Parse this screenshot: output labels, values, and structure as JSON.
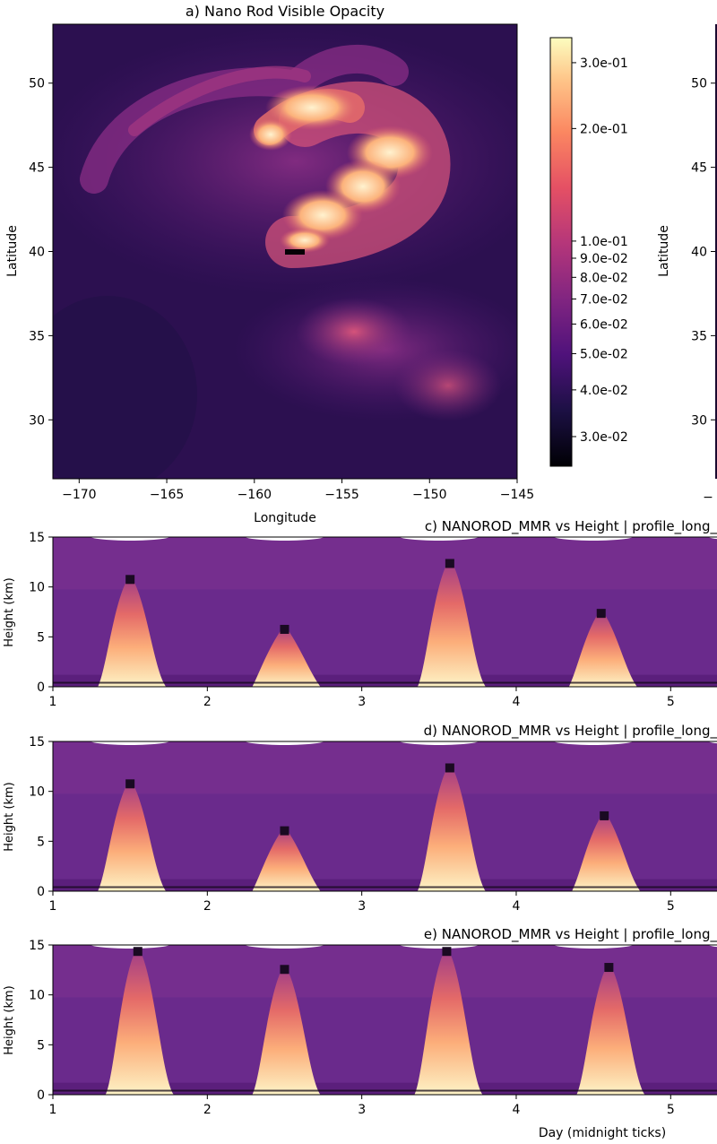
{
  "chart_data": [
    {
      "id": "a",
      "type": "heatmap",
      "title": "a) Nano Rod Visible Opacity",
      "xlabel": "Longitude",
      "ylabel": "Latitude",
      "xlim": [
        -171.5,
        -145
      ],
      "ylim": [
        26.5,
        53.5
      ],
      "xticks": [
        -170,
        -165,
        -160,
        -155,
        -150,
        -145
      ],
      "xtick_labels": [
        "−170",
        "−165",
        "−160",
        "−155",
        "−150",
        "−145"
      ],
      "yticks": [
        30,
        35,
        40,
        45,
        50
      ],
      "ytick_labels": [
        "30",
        "35",
        "40",
        "45",
        "50"
      ],
      "colormap": "magma",
      "colorbar": {
        "scale": "log",
        "range": [
          0.025,
          0.35
        ],
        "ticks": [
          0.3,
          0.2,
          0.1,
          0.09,
          0.08,
          0.07,
          0.06,
          0.05,
          0.04,
          0.03
        ],
        "tick_labels": [
          "3.0e-01",
          "2.0e-01",
          "1.0e-01",
          "9.0e-02",
          "8.0e-02",
          "7.0e-02",
          "6.0e-02",
          "5.0e-02",
          "4.0e-02",
          "3.0e-02"
        ]
      },
      "plume_features": [
        {
          "lon": -156.5,
          "lat": 47.8,
          "value": 0.32
        },
        {
          "lon": -153.0,
          "lat": 46.5,
          "value": 0.28
        },
        {
          "lon": -152.0,
          "lat": 44.0,
          "value": 0.3
        },
        {
          "lon": -154.5,
          "lat": 42.0,
          "value": 0.28
        },
        {
          "lon": -156.5,
          "lat": 40.6,
          "value": 0.33
        },
        {
          "lon": -154.0,
          "lat": 35.0,
          "value": 0.075
        }
      ]
    },
    {
      "id": "b",
      "type": "heatmap",
      "partial": true,
      "ylabel": "Latitude",
      "yticks": [
        30,
        35,
        40,
        45,
        50
      ],
      "ytick_labels": [
        "30",
        "35",
        "40",
        "45",
        "50"
      ]
    },
    {
      "id": "c",
      "type": "heatmap",
      "title": "c) NANOROD_MMR vs Height | profile_long_",
      "xlabel": "",
      "ylabel": "Height (km)",
      "xlim": [
        1,
        5.3
      ],
      "ylim": [
        0,
        15
      ],
      "xticks": [
        1,
        2,
        3,
        4,
        5
      ],
      "xtick_labels": [
        "1",
        "2",
        "3",
        "4",
        "5"
      ],
      "yticks": [
        0,
        5,
        10,
        15
      ],
      "ytick_labels": [
        "0",
        "5",
        "10",
        "15"
      ],
      "colormap": "magma",
      "plumes": [
        {
          "day": 1.5,
          "top_km": 11.2
        },
        {
          "day": 2.5,
          "top_km": 6.2
        },
        {
          "day": 3.57,
          "top_km": 12.8
        },
        {
          "day": 4.55,
          "top_km": 7.8
        }
      ]
    },
    {
      "id": "d",
      "type": "heatmap",
      "title": "d) NANOROD_MMR vs Height | profile_long_",
      "xlabel": "",
      "ylabel": "Height (km)",
      "xlim": [
        1,
        5.3
      ],
      "ylim": [
        0,
        15
      ],
      "xticks": [
        1,
        2,
        3,
        4,
        5
      ],
      "xtick_labels": [
        "1",
        "2",
        "3",
        "4",
        "5"
      ],
      "yticks": [
        0,
        5,
        10,
        15
      ],
      "ytick_labels": [
        "0",
        "5",
        "10",
        "15"
      ],
      "colormap": "magma",
      "plumes": [
        {
          "day": 1.5,
          "top_km": 11.2
        },
        {
          "day": 2.5,
          "top_km": 6.5
        },
        {
          "day": 3.57,
          "top_km": 12.8
        },
        {
          "day": 4.57,
          "top_km": 8.0
        }
      ]
    },
    {
      "id": "e",
      "type": "heatmap",
      "title": "e) NANOROD_MMR vs Height | profile_long_",
      "xlabel": "Day (midnight ticks)",
      "ylabel": "Height (km)",
      "xlim": [
        1,
        5.3
      ],
      "ylim": [
        0,
        15
      ],
      "xticks": [
        1,
        2,
        3,
        4,
        5
      ],
      "xtick_labels": [
        "1",
        "2",
        "3",
        "4",
        "5"
      ],
      "yticks": [
        0,
        5,
        10,
        15
      ],
      "ytick_labels": [
        "0",
        "5",
        "10",
        "15"
      ],
      "colormap": "magma",
      "plumes": [
        {
          "day": 1.55,
          "top_km": 14.8
        },
        {
          "day": 2.5,
          "top_km": 13.0
        },
        {
          "day": 3.55,
          "top_km": 14.8
        },
        {
          "day": 4.6,
          "top_km": 13.2
        }
      ]
    }
  ]
}
